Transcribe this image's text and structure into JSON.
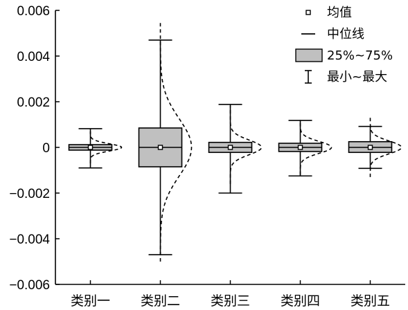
{
  "chart_data": {
    "type": "box",
    "title": "",
    "xlabel": "",
    "ylabel": "",
    "ylim": [
      -0.006,
      0.006
    ],
    "yticks": [
      0.006,
      0.004,
      0.002,
      0,
      -0.002,
      -0.004,
      -0.006
    ],
    "ytick_labels": [
      "0.006",
      "0.004",
      "0.002",
      "0",
      "−0.002",
      "−0.004",
      "−0.006"
    ],
    "categories": [
      "类别一",
      "类别二",
      "类别三",
      "类别四",
      "类别五"
    ],
    "boxes": [
      {
        "min": -0.0009,
        "q1": -0.00012,
        "median": 0.0,
        "q3": 0.00012,
        "max": 0.00082,
        "mean": 0.0,
        "dist_sd": 0.00016,
        "dist_range": [
          -0.0007,
          0.0007
        ]
      },
      {
        "min": -0.0047,
        "q1": -0.00085,
        "median": 0.0,
        "q3": 0.00085,
        "max": 0.0047,
        "mean": 0.0,
        "dist_sd": 0.00125,
        "dist_range": [
          -0.005,
          0.0055
        ]
      },
      {
        "min": -0.002,
        "q1": -0.00022,
        "median": 0.0,
        "q3": 0.00022,
        "max": 0.00188,
        "mean": 0.0,
        "dist_sd": 0.00032,
        "dist_range": [
          -0.0016,
          0.0018
        ]
      },
      {
        "min": -0.00125,
        "q1": -0.00018,
        "median": 0.0,
        "q3": 0.00018,
        "max": 0.00118,
        "mean": 0.0,
        "dist_sd": 0.00026,
        "dist_range": [
          -0.0012,
          0.0012
        ]
      },
      {
        "min": -0.00092,
        "q1": -0.00022,
        "median": 0.0,
        "q3": 0.00025,
        "max": 0.00092,
        "mean": 0.0,
        "dist_sd": 0.00028,
        "dist_range": [
          -0.0013,
          0.0013
        ]
      }
    ],
    "box_fill": "#c0c0c0",
    "legend": {
      "position": "top-right",
      "items": [
        {
          "label": "均值",
          "symbol": "mean"
        },
        {
          "label": "中位线",
          "symbol": "median"
        },
        {
          "label": "25%~75%",
          "symbol": "box"
        },
        {
          "label": "最小~最大",
          "symbol": "whisker"
        }
      ]
    }
  }
}
